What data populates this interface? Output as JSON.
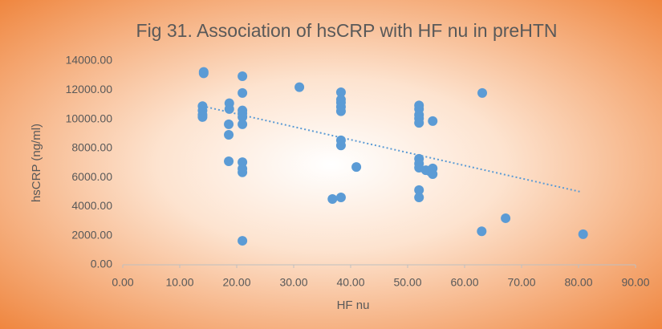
{
  "chart_data": {
    "type": "scatter",
    "title": "Fig 31. Association of hsCRP with HF nu in preHTN",
    "x_label": "HF nu",
    "y_label": "hsCRP (ng/ml)",
    "color": "#5b9bd5",
    "grid": false,
    "x": [
      14.2,
      14.2,
      14,
      14,
      14,
      14,
      18.7,
      18.7,
      18.6,
      18.6,
      18.6,
      21,
      21,
      21,
      21,
      21,
      21,
      21,
      21,
      21,
      21,
      31,
      38.3,
      38.3,
      38.3,
      38.3,
      38.3,
      38.3,
      38.3,
      38.3,
      36.8,
      41,
      52,
      52,
      52,
      52,
      52,
      52,
      52,
      52,
      52,
      52,
      53.2,
      54,
      54.4,
      54.4,
      54.4,
      63.1,
      63,
      67.2,
      80.8
    ],
    "values": [
      13250,
      13150,
      10900,
      10600,
      10300,
      10150,
      11100,
      10700,
      9650,
      8930,
      7110,
      12950,
      11800,
      10600,
      10400,
      10150,
      9650,
      7050,
      6600,
      6350,
      1650,
      12200,
      11850,
      11350,
      11150,
      10850,
      10550,
      8550,
      8200,
      4630,
      4520,
      6720,
      10950,
      10700,
      10300,
      10050,
      9750,
      7280,
      6950,
      6670,
      5130,
      4630,
      6500,
      6400,
      9870,
      6620,
      6230,
      11800,
      2300,
      3200,
      2100
    ],
    "trendline": {
      "x": [
        14,
        80.5
      ],
      "y": [
        10900,
        5000
      ]
    },
    "xlim": [
      0,
      90
    ],
    "xticks": [
      {
        "value": 0,
        "label": "0.00"
      },
      {
        "value": 10,
        "label": "10.00"
      },
      {
        "value": 20,
        "label": "20.00"
      },
      {
        "value": 30,
        "label": "30.00"
      },
      {
        "value": 40,
        "label": "40.00"
      },
      {
        "value": 50,
        "label": "50.00"
      },
      {
        "value": 60,
        "label": "60.00"
      },
      {
        "value": 70,
        "label": "70.00"
      },
      {
        "value": 80,
        "label": "80.00"
      },
      {
        "value": 90,
        "label": "90.00"
      }
    ],
    "ylim": [
      0,
      14000
    ],
    "yticks": [
      {
        "value": 0,
        "label": "0.00"
      },
      {
        "value": 2000,
        "label": "2000.00"
      },
      {
        "value": 4000,
        "label": "4000.00"
      },
      {
        "value": 6000,
        "label": "6000.00"
      },
      {
        "value": 8000,
        "label": "8000.00"
      },
      {
        "value": 10000,
        "label": "10000.00"
      },
      {
        "value": 12000,
        "label": "12000.00"
      },
      {
        "value": 14000,
        "label": "14000.00"
      }
    ]
  }
}
